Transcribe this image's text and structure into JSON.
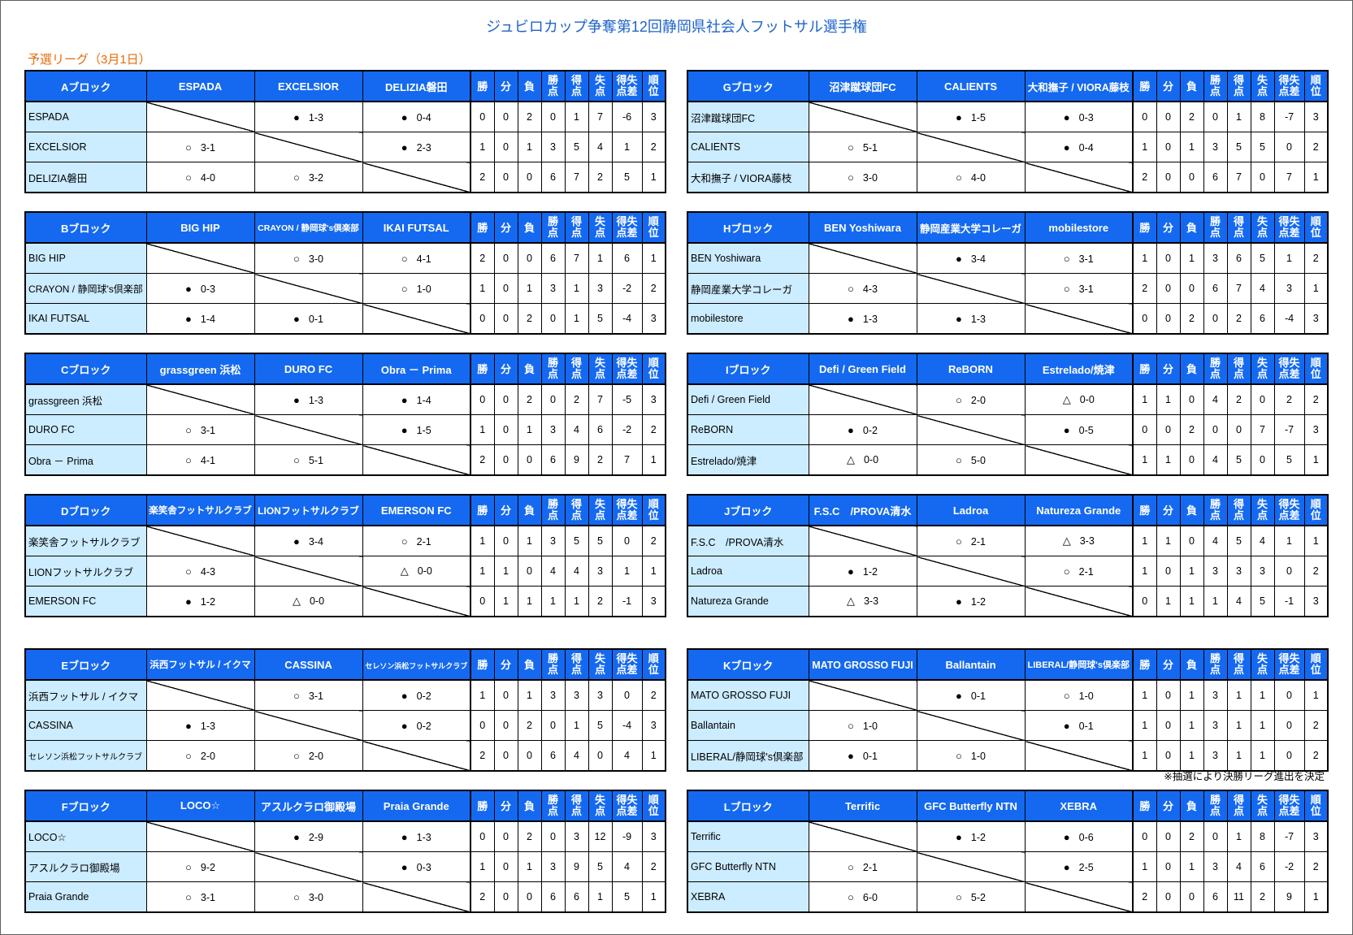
{
  "title": "ジュビロカップ争奪第12回静岡県社会人フットサル選手権",
  "subtitle": "予選リーグ（3月1日）",
  "note": "※抽選により決勝リーグ進出を決定",
  "colors": {
    "title": "#1F64C8",
    "subtitle": "#E46C0A",
    "header_bg": "#1469F0",
    "header_text": "#FFFFFF",
    "team_cell_bg": "#CCECFF",
    "grid": "#000000"
  },
  "stat_headers": [
    "勝",
    "分",
    "負",
    "勝点",
    "得点",
    "失点",
    "得失点差",
    "順位"
  ],
  "blocks": [
    {
      "name": "Aブロック",
      "teams": [
        "ESPADA",
        "EXCELSIOR",
        "DELIZIA磐田"
      ],
      "rows": [
        {
          "team": "ESPADA",
          "results": [
            null,
            {
              "mark": "●",
              "score": "1-3"
            },
            {
              "mark": "●",
              "score": "0-4"
            }
          ],
          "stats": [
            0,
            0,
            2,
            0,
            1,
            7,
            -6,
            3
          ]
        },
        {
          "team": "EXCELSIOR",
          "results": [
            {
              "mark": "○",
              "score": "3-1"
            },
            null,
            {
              "mark": "●",
              "score": "2-3"
            }
          ],
          "stats": [
            1,
            0,
            1,
            3,
            5,
            4,
            1,
            2
          ]
        },
        {
          "team": "DELIZIA磐田",
          "results": [
            {
              "mark": "○",
              "score": "4-0"
            },
            {
              "mark": "○",
              "score": "3-2"
            },
            null
          ],
          "stats": [
            2,
            0,
            0,
            6,
            7,
            2,
            5,
            1
          ]
        }
      ]
    },
    {
      "name": "Bブロック",
      "teams": [
        "BIG HIP",
        "CRAYON / 静岡球's倶楽部",
        "IKAI FUTSAL"
      ],
      "rows": [
        {
          "team": "BIG HIP",
          "results": [
            null,
            {
              "mark": "○",
              "score": "3-0"
            },
            {
              "mark": "○",
              "score": "4-1"
            }
          ],
          "stats": [
            2,
            0,
            0,
            6,
            7,
            1,
            6,
            1
          ]
        },
        {
          "team": "CRAYON / 静岡球's倶楽部",
          "results": [
            {
              "mark": "●",
              "score": "0-3"
            },
            null,
            {
              "mark": "○",
              "score": "1-0"
            }
          ],
          "stats": [
            1,
            0,
            1,
            3,
            1,
            3,
            -2,
            2
          ]
        },
        {
          "team": "IKAI FUTSAL",
          "results": [
            {
              "mark": "●",
              "score": "1-4"
            },
            {
              "mark": "●",
              "score": "0-1"
            },
            null
          ],
          "stats": [
            0,
            0,
            2,
            0,
            1,
            5,
            -4,
            3
          ]
        }
      ]
    },
    {
      "name": "Cブロック",
      "teams": [
        "grassgreen 浜松",
        "DURO FC",
        "Obra － Prima"
      ],
      "rows": [
        {
          "team": "grassgreen 浜松",
          "results": [
            null,
            {
              "mark": "●",
              "score": "1-3"
            },
            {
              "mark": "●",
              "score": "1-4"
            }
          ],
          "stats": [
            0,
            0,
            2,
            0,
            2,
            7,
            -5,
            3
          ]
        },
        {
          "team": "DURO FC",
          "results": [
            {
              "mark": "○",
              "score": "3-1"
            },
            null,
            {
              "mark": "●",
              "score": "1-5"
            }
          ],
          "stats": [
            1,
            0,
            1,
            3,
            4,
            6,
            -2,
            2
          ]
        },
        {
          "team": "Obra － Prima",
          "results": [
            {
              "mark": "○",
              "score": "4-1"
            },
            {
              "mark": "○",
              "score": "5-1"
            },
            null
          ],
          "stats": [
            2,
            0,
            0,
            6,
            9,
            2,
            7,
            1
          ]
        }
      ]
    },
    {
      "name": "Dブロック",
      "teams": [
        "楽笑舎フットサルクラブ",
        "LIONフットサルクラブ",
        "EMERSON FC"
      ],
      "rows": [
        {
          "team": "楽笑舎フットサルクラブ",
          "results": [
            null,
            {
              "mark": "●",
              "score": "3-4"
            },
            {
              "mark": "○",
              "score": "2-1"
            }
          ],
          "stats": [
            1,
            0,
            1,
            3,
            5,
            5,
            0,
            2
          ]
        },
        {
          "team": "LIONフットサルクラブ",
          "results": [
            {
              "mark": "○",
              "score": "4-3"
            },
            null,
            {
              "mark": "△",
              "score": "0-0"
            }
          ],
          "stats": [
            1,
            1,
            0,
            4,
            4,
            3,
            1,
            1
          ]
        },
        {
          "team": "EMERSON FC",
          "results": [
            {
              "mark": "●",
              "score": "1-2"
            },
            {
              "mark": "△",
              "score": "0-0"
            },
            null
          ],
          "stats": [
            0,
            1,
            1,
            1,
            1,
            2,
            -1,
            3
          ]
        }
      ]
    },
    {
      "name": "Eブロック",
      "teams": [
        "浜西フットサル / イクマ",
        "CASSINA",
        "セレソン浜松フットサルクラブ"
      ],
      "rows": [
        {
          "team": "浜西フットサル / イクマ",
          "results": [
            null,
            {
              "mark": "○",
              "score": "3-1"
            },
            {
              "mark": "●",
              "score": "0-2"
            }
          ],
          "stats": [
            1,
            0,
            1,
            3,
            3,
            3,
            0,
            2
          ]
        },
        {
          "team": "CASSINA",
          "results": [
            {
              "mark": "●",
              "score": "1-3"
            },
            null,
            {
              "mark": "●",
              "score": "0-2"
            }
          ],
          "stats": [
            0,
            0,
            2,
            0,
            1,
            5,
            -4,
            3
          ]
        },
        {
          "team": "セレソン浜松フットサルクラブ",
          "results": [
            {
              "mark": "○",
              "score": "2-0"
            },
            {
              "mark": "○",
              "score": "2-0"
            },
            null
          ],
          "stats": [
            2,
            0,
            0,
            6,
            4,
            0,
            4,
            1
          ]
        }
      ]
    },
    {
      "name": "Fブロック",
      "teams": [
        "LOCO☆",
        "アスルクラロ御殿場",
        "Praia Grande"
      ],
      "rows": [
        {
          "team": "LOCO☆",
          "results": [
            null,
            {
              "mark": "●",
              "score": "2-9"
            },
            {
              "mark": "●",
              "score": "1-3"
            }
          ],
          "stats": [
            0,
            0,
            2,
            0,
            3,
            12,
            -9,
            3
          ]
        },
        {
          "team": "アスルクラロ御殿場",
          "results": [
            {
              "mark": "○",
              "score": "9-2"
            },
            null,
            {
              "mark": "●",
              "score": "0-3"
            }
          ],
          "stats": [
            1,
            0,
            1,
            3,
            9,
            5,
            4,
            2
          ]
        },
        {
          "team": "Praia Grande",
          "results": [
            {
              "mark": "○",
              "score": "3-1"
            },
            {
              "mark": "○",
              "score": "3-0"
            },
            null
          ],
          "stats": [
            2,
            0,
            0,
            6,
            6,
            1,
            5,
            1
          ]
        }
      ]
    },
    {
      "name": "Gブロック",
      "teams": [
        "沼津蹴球団FC",
        "CALIENTS",
        "大和撫子 / VIORA藤枝"
      ],
      "rows": [
        {
          "team": "沼津蹴球団FC",
          "results": [
            null,
            {
              "mark": "●",
              "score": "1-5"
            },
            {
              "mark": "●",
              "score": "0-3"
            }
          ],
          "stats": [
            0,
            0,
            2,
            0,
            1,
            8,
            -7,
            3
          ]
        },
        {
          "team": "CALIENTS",
          "results": [
            {
              "mark": "○",
              "score": "5-1"
            },
            null,
            {
              "mark": "●",
              "score": "0-4"
            }
          ],
          "stats": [
            1,
            0,
            1,
            3,
            5,
            5,
            0,
            2
          ]
        },
        {
          "team": "大和撫子 / VIORA藤枝",
          "results": [
            {
              "mark": "○",
              "score": "3-0"
            },
            {
              "mark": "○",
              "score": "4-0"
            },
            null
          ],
          "stats": [
            2,
            0,
            0,
            6,
            7,
            0,
            7,
            1
          ]
        }
      ]
    },
    {
      "name": "Hブロック",
      "teams": [
        "BEN Yoshiwara",
        "静岡産業大学コレーガ",
        "mobilestore"
      ],
      "rows": [
        {
          "team": "BEN Yoshiwara",
          "results": [
            null,
            {
              "mark": "●",
              "score": "3-4"
            },
            {
              "mark": "○",
              "score": "3-1"
            }
          ],
          "stats": [
            1,
            0,
            1,
            3,
            6,
            5,
            1,
            2
          ]
        },
        {
          "team": "静岡産業大学コレーガ",
          "results": [
            {
              "mark": "○",
              "score": "4-3"
            },
            null,
            {
              "mark": "○",
              "score": "3-1"
            }
          ],
          "stats": [
            2,
            0,
            0,
            6,
            7,
            4,
            3,
            1
          ]
        },
        {
          "team": "mobilestore",
          "results": [
            {
              "mark": "●",
              "score": "1-3"
            },
            {
              "mark": "●",
              "score": "1-3"
            },
            null
          ],
          "stats": [
            0,
            0,
            2,
            0,
            2,
            6,
            -4,
            3
          ]
        }
      ]
    },
    {
      "name": "Iブロック",
      "teams": [
        "Defi / Green Field",
        "ReBORN",
        "Estrelado/焼津"
      ],
      "rows": [
        {
          "team": "Defi / Green Field",
          "results": [
            null,
            {
              "mark": "○",
              "score": "2-0"
            },
            {
              "mark": "△",
              "score": "0-0"
            }
          ],
          "stats": [
            1,
            1,
            0,
            4,
            2,
            0,
            2,
            2
          ]
        },
        {
          "team": "ReBORN",
          "results": [
            {
              "mark": "●",
              "score": "0-2"
            },
            null,
            {
              "mark": "●",
              "score": "0-5"
            }
          ],
          "stats": [
            0,
            0,
            2,
            0,
            0,
            7,
            -7,
            3
          ]
        },
        {
          "team": "Estrelado/焼津",
          "results": [
            {
              "mark": "△",
              "score": "0-0"
            },
            {
              "mark": "○",
              "score": "5-0"
            },
            null
          ],
          "stats": [
            1,
            1,
            0,
            4,
            5,
            0,
            5,
            1
          ]
        }
      ]
    },
    {
      "name": "Jブロック",
      "teams": [
        "F.S.C　/PROVA清水",
        "Ladroa",
        "Natureza Grande"
      ],
      "rows": [
        {
          "team": "F.S.C　/PROVA清水",
          "results": [
            null,
            {
              "mark": "○",
              "score": "2-1"
            },
            {
              "mark": "△",
              "score": "3-3"
            }
          ],
          "stats": [
            1,
            1,
            0,
            4,
            5,
            4,
            1,
            1
          ]
        },
        {
          "team": "Ladroa",
          "results": [
            {
              "mark": "●",
              "score": "1-2"
            },
            null,
            {
              "mark": "○",
              "score": "2-1"
            }
          ],
          "stats": [
            1,
            0,
            1,
            3,
            3,
            3,
            0,
            2
          ]
        },
        {
          "team": "Natureza Grande",
          "results": [
            {
              "mark": "△",
              "score": "3-3"
            },
            {
              "mark": "●",
              "score": "1-2"
            },
            null
          ],
          "stats": [
            0,
            1,
            1,
            1,
            4,
            5,
            -1,
            3
          ]
        }
      ]
    },
    {
      "name": "Kブロック",
      "teams": [
        "MATO GROSSO FUJI",
        "Ballantain",
        "LIBERAL/静岡球's倶楽部"
      ],
      "rows": [
        {
          "team": "MATO GROSSO FUJI",
          "results": [
            null,
            {
              "mark": "●",
              "score": "0-1"
            },
            {
              "mark": "○",
              "score": "1-0"
            }
          ],
          "stats": [
            1,
            0,
            1,
            3,
            1,
            1,
            0,
            1
          ]
        },
        {
          "team": "Ballantain",
          "results": [
            {
              "mark": "○",
              "score": "1-0"
            },
            null,
            {
              "mark": "●",
              "score": "0-1"
            }
          ],
          "stats": [
            1,
            0,
            1,
            3,
            1,
            1,
            0,
            2
          ]
        },
        {
          "team": "LIBERAL/静岡球's倶楽部",
          "results": [
            {
              "mark": "●",
              "score": "0-1"
            },
            {
              "mark": "○",
              "score": "1-0"
            },
            null
          ],
          "stats": [
            1,
            0,
            1,
            3,
            1,
            1,
            0,
            2
          ]
        }
      ]
    },
    {
      "name": "Lブロック",
      "teams": [
        "Terrific",
        "GFC Butterfly NTN",
        "XEBRA"
      ],
      "rows": [
        {
          "team": "Terrific",
          "results": [
            null,
            {
              "mark": "●",
              "score": "1-2"
            },
            {
              "mark": "●",
              "score": "0-6"
            }
          ],
          "stats": [
            0,
            0,
            2,
            0,
            1,
            8,
            -7,
            3
          ]
        },
        {
          "team": "GFC Butterfly NTN",
          "results": [
            {
              "mark": "○",
              "score": "2-1"
            },
            null,
            {
              "mark": "●",
              "score": "2-5"
            }
          ],
          "stats": [
            1,
            0,
            1,
            3,
            4,
            6,
            -2,
            2
          ]
        },
        {
          "team": "XEBRA",
          "results": [
            {
              "mark": "○",
              "score": "6-0"
            },
            {
              "mark": "○",
              "score": "5-2"
            },
            null
          ],
          "stats": [
            2,
            0,
            0,
            6,
            11,
            2,
            9,
            1
          ]
        }
      ]
    }
  ]
}
